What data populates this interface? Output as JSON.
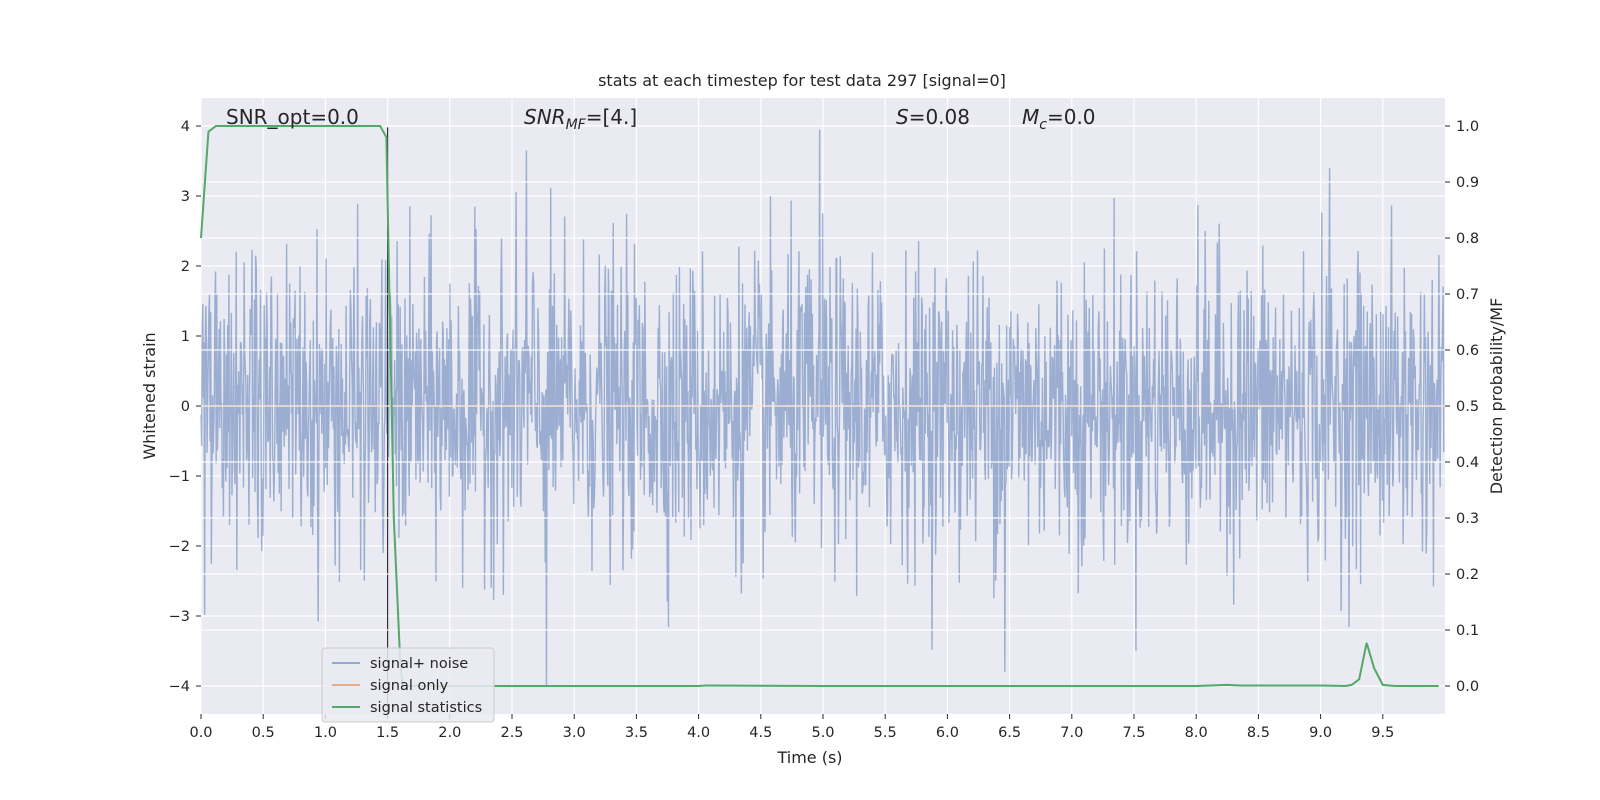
{
  "chart_data": {
    "type": "line",
    "title": "stats at each timestep for test data 297 [signal=0]",
    "xlabel": "Time (s)",
    "ylabel_left": "Whitened strain",
    "ylabel_right": "Detection probability/MF",
    "xlim": [
      0.0,
      10.0
    ],
    "ylim_left": [
      -4.4,
      4.4
    ],
    "ylim_right": [
      -0.05,
      1.05
    ],
    "xticks": [
      "0.0",
      "0.5",
      "1.0",
      "1.5",
      "2.0",
      "2.5",
      "3.0",
      "3.5",
      "4.0",
      "4.5",
      "5.0",
      "5.5",
      "6.0",
      "6.5",
      "7.0",
      "7.5",
      "8.0",
      "8.5",
      "9.0",
      "9.5"
    ],
    "xtick_values": [
      0,
      0.5,
      1,
      1.5,
      2,
      2.5,
      3,
      3.5,
      4,
      4.5,
      5,
      5.5,
      6,
      6.5,
      7,
      7.5,
      8,
      8.5,
      9,
      9.5
    ],
    "yticks_left": [
      "−4",
      "−3",
      "−2",
      "−1",
      "0",
      "1",
      "2",
      "3",
      "4"
    ],
    "ytick_values_left": [
      -4,
      -3,
      -2,
      -1,
      0,
      1,
      2,
      3,
      4
    ],
    "yticks_right": [
      "0.0",
      "0.1",
      "0.2",
      "0.3",
      "0.4",
      "0.5",
      "0.6",
      "0.7",
      "0.8",
      "0.9",
      "1.0"
    ],
    "ytick_values_right": [
      0,
      0.1,
      0.2,
      0.3,
      0.4,
      0.5,
      0.6,
      0.7,
      0.8,
      0.9,
      1.0
    ],
    "grid": true,
    "legend_position": "lower-left",
    "annotations": {
      "snr_opt": "SNR_opt=0.0",
      "snr_mf_main": "SNR",
      "snr_mf_sub": "MF",
      "snr_mf_rest": "=[4.]",
      "s_main": "S",
      "s_rest": "=0.08",
      "mc_main": "M",
      "mc_sub": "c",
      "mc_rest": "=0.0"
    },
    "vline_x": 1.5,
    "series": [
      {
        "name": "signal+ noise",
        "color": "#4c72b0",
        "axis": "left",
        "description_samples": 2048,
        "approx_range": [
          -4.0,
          4.0
        ],
        "peaks": [
          {
            "x": 2.78,
            "y": -4.0
          },
          {
            "x": 4.98,
            "y": 3.95
          },
          {
            "x": 6.47,
            "y": -3.8
          },
          {
            "x": 2.62,
            "y": 3.65
          },
          {
            "x": 9.08,
            "y": 3.4
          }
        ]
      },
      {
        "name": "signal only",
        "color": "#dd8452",
        "axis": "left",
        "x": [
          0.0,
          10.0
        ],
        "y": [
          0.0,
          0.0
        ]
      },
      {
        "name": "signal statistics",
        "color": "#55a868",
        "axis": "right",
        "x": [
          0.0,
          0.06,
          0.12,
          0.2,
          0.5,
          1.0,
          1.4,
          1.44,
          1.49,
          1.55,
          1.6,
          1.62,
          1.7,
          2.0,
          3.0,
          4.0,
          4.06,
          5.0,
          6.0,
          7.0,
          8.0,
          8.25,
          8.35,
          9.0,
          9.2,
          9.25,
          9.31,
          9.37,
          9.43,
          9.5,
          9.6,
          9.95
        ],
        "y": [
          0.8,
          0.99,
          1.0,
          1.0,
          1.0,
          1.0,
          1.0,
          1.0,
          0.98,
          0.3,
          0.05,
          0.0,
          0.0,
          0.0,
          0.0,
          0.0,
          0.001,
          0.0,
          0.0,
          0.0,
          0.0,
          0.002,
          0.001,
          0.001,
          0.0,
          0.002,
          0.012,
          0.077,
          0.032,
          0.002,
          0.0,
          0.0
        ]
      }
    ]
  }
}
